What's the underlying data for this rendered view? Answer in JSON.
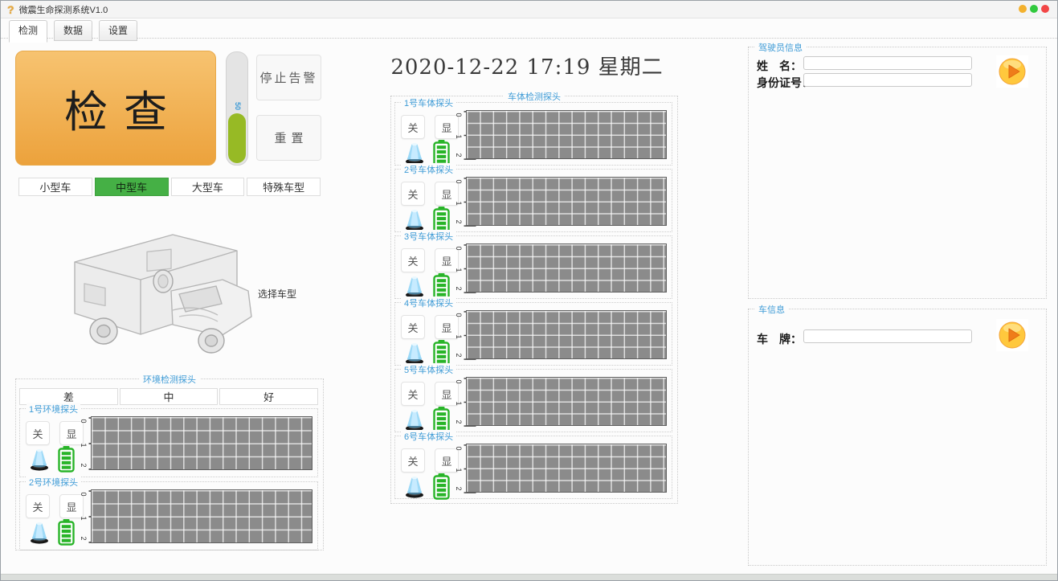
{
  "window": {
    "title": "微震生命探测系统V1.0",
    "controls": [
      {
        "name": "minimize",
        "color": "#f3b12e"
      },
      {
        "name": "maximize",
        "color": "#31c93e"
      },
      {
        "name": "close",
        "color": "#f24646"
      }
    ]
  },
  "tabs": [
    {
      "label": "检测",
      "active": true
    },
    {
      "label": "数据",
      "active": false
    },
    {
      "label": "设置",
      "active": false
    }
  ],
  "detect": {
    "check_button": "检查",
    "signal_level": {
      "value": "50",
      "percent": 44
    },
    "stop_alarm_button": "停止告警",
    "reset_button": "重置",
    "vehicle_types": [
      {
        "label": "小型车",
        "selected": false
      },
      {
        "label": "中型车",
        "selected": true
      },
      {
        "label": "大型车",
        "selected": false
      },
      {
        "label": "特殊车型",
        "selected": false
      }
    ],
    "select_vehicle_hint": "选择车型",
    "vehicle_image": "ambulance-wireframe"
  },
  "datetime": "2020-12-22 17:19 星期二",
  "env_group": {
    "title": "环境检测探头",
    "quality_buttons": [
      "差",
      "中",
      "好"
    ],
    "probes": [
      {
        "label": "1号环境探头"
      },
      {
        "label": "2号环境探头"
      }
    ]
  },
  "body_group": {
    "title": "车体检测探头",
    "probes": [
      {
        "label": "1号车体探头"
      },
      {
        "label": "2号车体探头"
      },
      {
        "label": "3号车体探头"
      },
      {
        "label": "4号车体探头"
      },
      {
        "label": "5号车体探头"
      },
      {
        "label": "6号车体探头"
      }
    ]
  },
  "probe_controls": {
    "off_button": "关",
    "show_button": "显",
    "scale_labels": [
      "0",
      "1",
      "2"
    ],
    "icons": [
      "detector-cone-icon",
      "battery-icon"
    ]
  },
  "driver_info": {
    "title": "驾驶员信息",
    "name_label": "姓　名：",
    "name_value": "",
    "id_label": "身份证号：",
    "id_value": "",
    "play_icon": "play-icon"
  },
  "vehicle_info": {
    "title": "车信息",
    "plate_label": "车　牌：",
    "plate_value": "",
    "play_icon": "play-icon"
  },
  "colors": {
    "accent_blue": "#3e9bd6",
    "selected_green": "#45b045",
    "check_orange_top": "#f7c370",
    "check_orange_bottom": "#eca23c",
    "level_green": "#97ba25",
    "battery_green": "#28b428",
    "chart_gray": "#8b8b8b"
  }
}
